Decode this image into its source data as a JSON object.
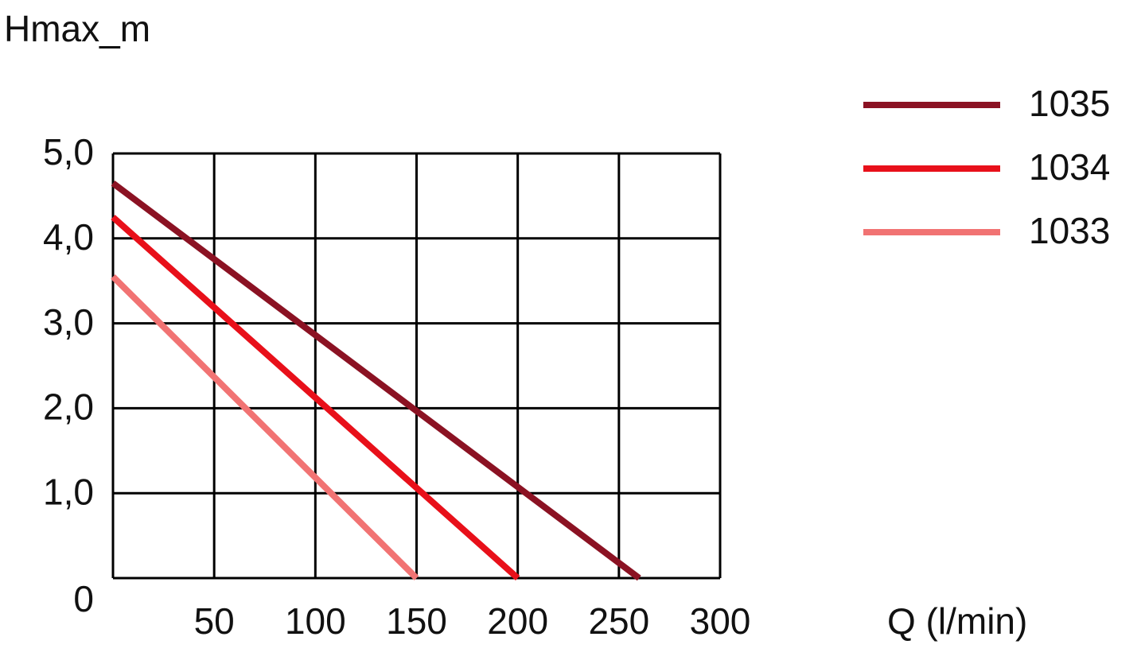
{
  "chart_data": {
    "type": "line",
    "y_label": "Hmax_m",
    "x_label": "Q (l/min)",
    "xlim": [
      0,
      300
    ],
    "xticks": [
      50,
      100,
      150,
      200,
      250,
      300
    ],
    "ylim": [
      0,
      5
    ],
    "yticks": [
      0,
      {
        "value": 1,
        "label": "1,0"
      },
      {
        "value": 2,
        "label": "2,0"
      },
      {
        "value": 3,
        "label": "3,0"
      },
      {
        "value": 4,
        "label": "4,0"
      },
      {
        "value": 5,
        "label": "5,0"
      }
    ],
    "grid": true,
    "legend": "top-right",
    "series": [
      {
        "name": "1035",
        "color": "#8b1223",
        "x": [
          0,
          260
        ],
        "values": [
          4.65,
          0
        ]
      },
      {
        "name": "1034",
        "color": "#e8101a",
        "x": [
          0,
          200
        ],
        "values": [
          4.25,
          0
        ]
      },
      {
        "name": "1033",
        "color": "#f17373",
        "x": [
          0,
          150
        ],
        "values": [
          3.55,
          0
        ]
      }
    ]
  }
}
